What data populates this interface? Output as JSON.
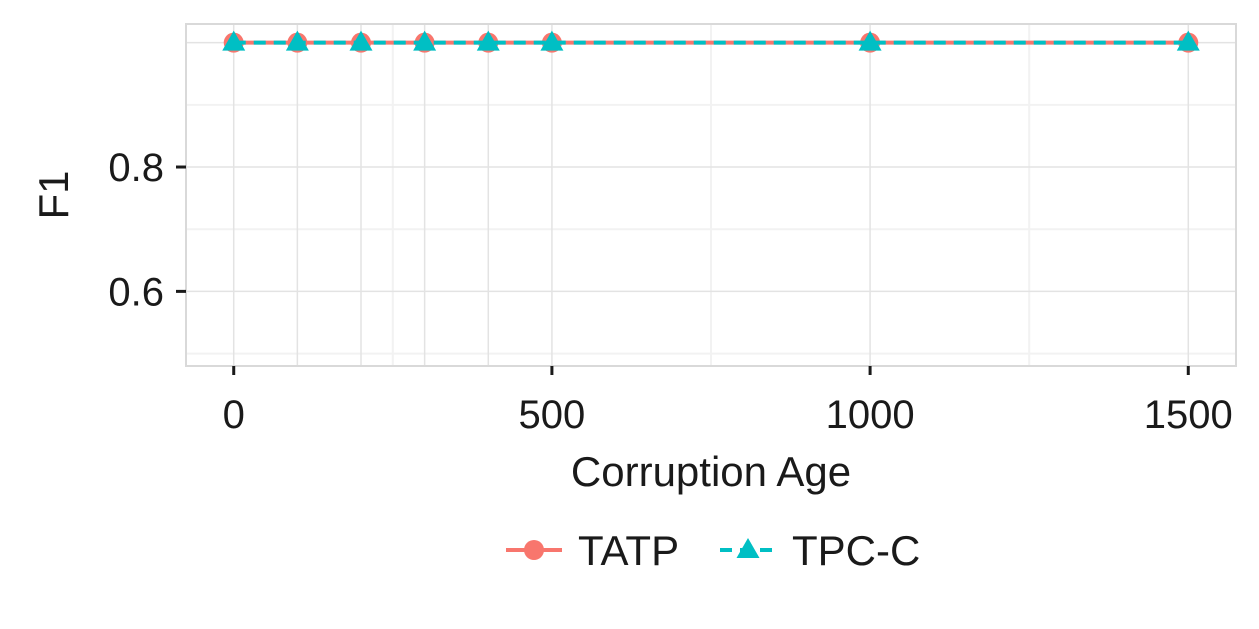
{
  "chart_data": {
    "type": "line",
    "title": "",
    "xlabel": "Corruption Age",
    "ylabel": "F1",
    "x": [
      0,
      100,
      200,
      300,
      400,
      500,
      1000,
      1500
    ],
    "series": [
      {
        "name": "TATP",
        "values": [
          1,
          1,
          1,
          1,
          1,
          1,
          1,
          1
        ],
        "color": "#F8766D",
        "marker": "circle",
        "line": "solid"
      },
      {
        "name": "TPC-C",
        "values": [
          1,
          1,
          1,
          1,
          1,
          1,
          1,
          1
        ],
        "color": "#00BFC4",
        "marker": "triangle",
        "line": "dashed"
      }
    ],
    "xlim": [
      -75,
      1575
    ],
    "ylim": [
      0.48,
      1.03
    ],
    "xticks": [
      0,
      500,
      1000,
      1500
    ],
    "xtick_labels": [
      "0",
      "500",
      "1000",
      "1500"
    ],
    "yticks": [
      0.6,
      0.8
    ],
    "ytick_labels": [
      "0.6",
      "0.8"
    ],
    "grid": true,
    "legend_position": "bottom"
  }
}
